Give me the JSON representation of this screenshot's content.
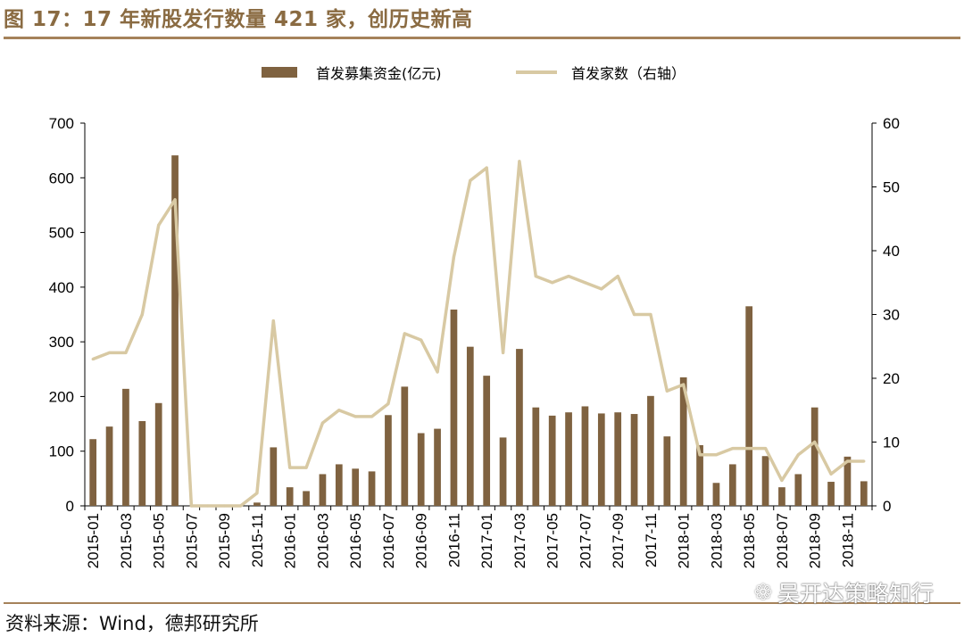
{
  "title": "图 17：17 年新股发行数量 421 家，创历史新高",
  "source": "资料来源：Wind，德邦研究所",
  "watermark": {
    "icon": "wechat-icon",
    "text": "吴开达策略知行"
  },
  "colors": {
    "bar": "#7f6240",
    "line": "#d8c9a3",
    "accent": "#8a6b42",
    "rule": "#a5825a"
  },
  "chart_data": {
    "type": "bar",
    "legend": [
      "首发募集资金(亿元)",
      "首发家数（右轴）"
    ],
    "legend_position": "top-center",
    "grid": false,
    "categories": [
      "2015-01",
      "2015-02",
      "2015-03",
      "2015-04",
      "2015-05",
      "2015-06",
      "2015-07",
      "2015-08",
      "2015-09",
      "2015-10",
      "2015-11",
      "2015-12",
      "2016-01",
      "2016-02",
      "2016-03",
      "2016-04",
      "2016-05",
      "2016-06",
      "2016-07",
      "2016-08",
      "2016-09",
      "2016-10",
      "2016-11",
      "2016-12",
      "2017-01",
      "2017-02",
      "2017-03",
      "2017-04",
      "2017-05",
      "2017-06",
      "2017-07",
      "2017-08",
      "2017-09",
      "2017-10",
      "2017-11",
      "2017-12",
      "2018-01",
      "2018-02",
      "2018-03",
      "2018-04",
      "2018-05",
      "2018-06",
      "2018-07",
      "2018-08",
      "2018-09",
      "2018-10",
      "2018-11",
      "2018-12"
    ],
    "x_tick_labels": [
      "2015-01",
      "2015-03",
      "2015-05",
      "2015-07",
      "2015-09",
      "2015-11",
      "2016-01",
      "2016-03",
      "2016-05",
      "2016-07",
      "2016-09",
      "2016-11",
      "2017-01",
      "2017-03",
      "2017-05",
      "2017-07",
      "2017-09",
      "2017-11",
      "2018-01",
      "2018-03",
      "2018-05",
      "2018-07",
      "2018-09",
      "2018-11"
    ],
    "series": [
      {
        "name": "首发募集资金(亿元)",
        "type": "bar",
        "axis": "left",
        "values": [
          122,
          145,
          214,
          155,
          188,
          641,
          0,
          0,
          0,
          0,
          6,
          107,
          34,
          27,
          58,
          76,
          68,
          63,
          166,
          218,
          133,
          141,
          359,
          291,
          238,
          125,
          287,
          180,
          165,
          171,
          182,
          169,
          171,
          168,
          201,
          127,
          235,
          111,
          42,
          76,
          365,
          91,
          34,
          58,
          180,
          44,
          90,
          45
        ]
      },
      {
        "name": "首发家数（右轴）",
        "type": "line",
        "axis": "right",
        "values": [
          23,
          24,
          24,
          30,
          44,
          48,
          0,
          0,
          0,
          0,
          2,
          29,
          6,
          6,
          13,
          15,
          14,
          14,
          16,
          27,
          26,
          21,
          39,
          51,
          53,
          24,
          54,
          36,
          35,
          36,
          35,
          34,
          36,
          30,
          30,
          18,
          19,
          8,
          8,
          9,
          9,
          9,
          4,
          8,
          10,
          5,
          7,
          7
        ]
      }
    ],
    "ylim_left": [
      0,
      700
    ],
    "yticks_left": [
      0,
      100,
      200,
      300,
      400,
      500,
      600,
      700
    ],
    "ylim_right": [
      0,
      60
    ],
    "yticks_right": [
      0,
      10,
      20,
      30,
      40,
      50,
      60
    ]
  }
}
